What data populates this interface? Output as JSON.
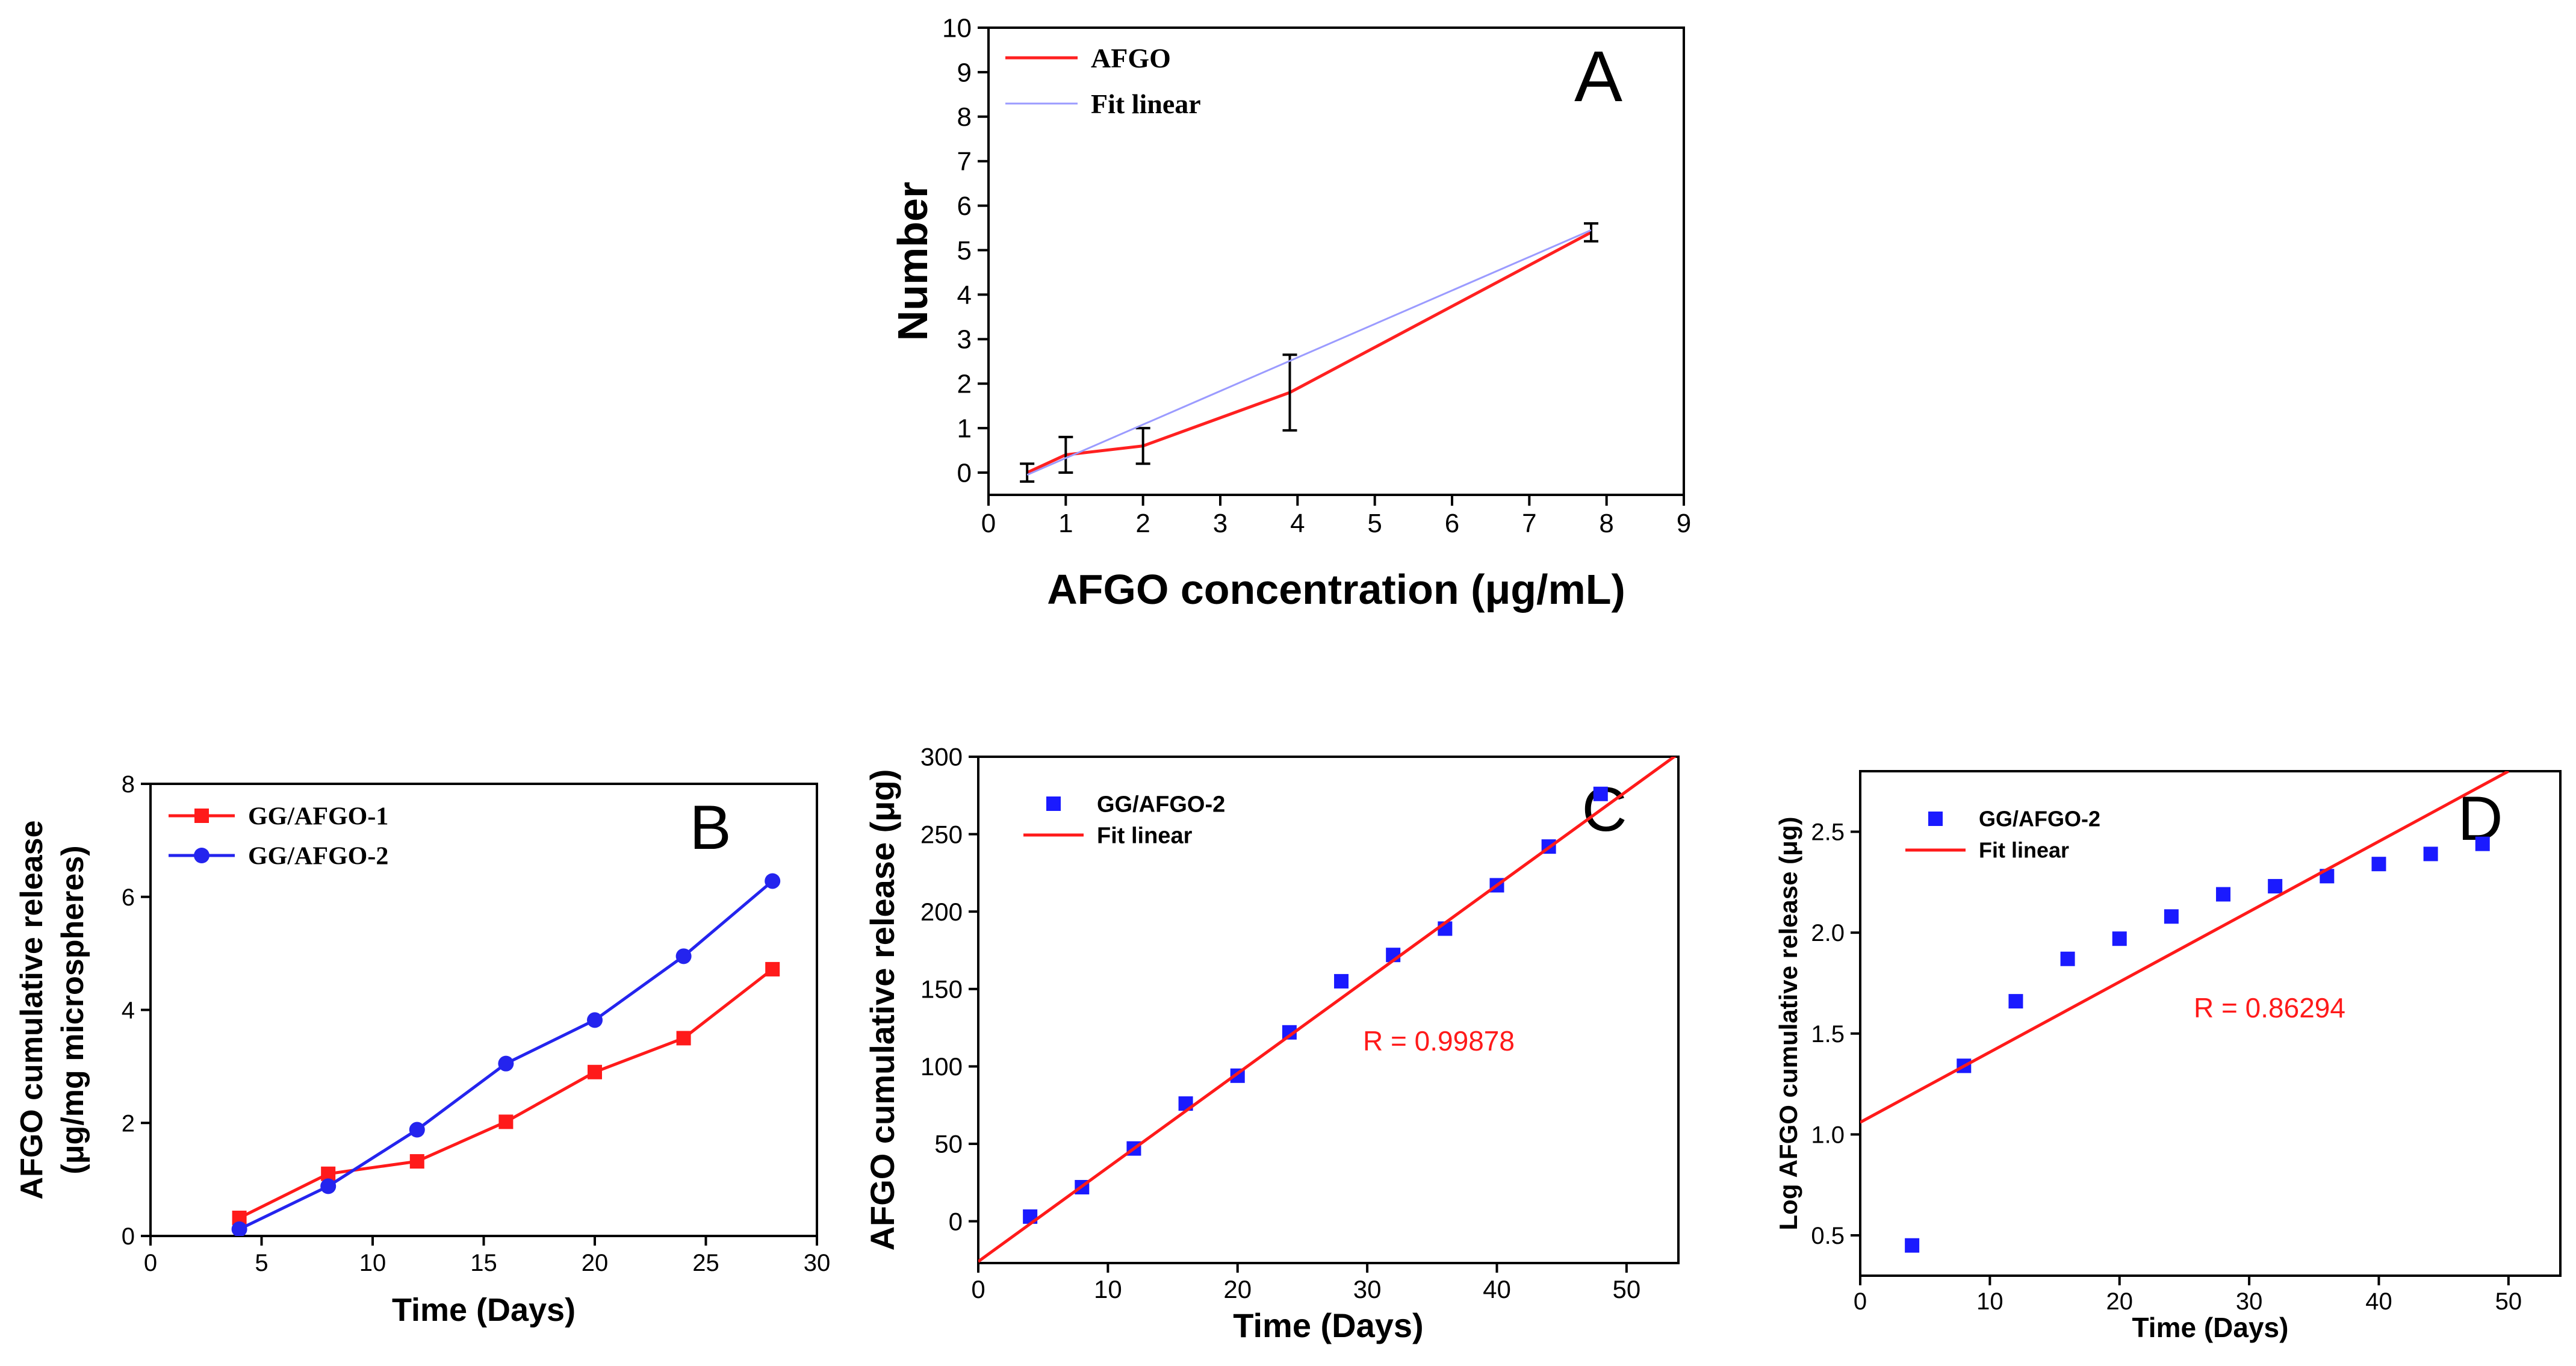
{
  "chart_data": [
    {
      "panel": "A",
      "type": "line",
      "panel_label": "A",
      "xlabel": "AFGO concentration (μg/mL)",
      "ylabel": "Number",
      "xlim": [
        0,
        9
      ],
      "ylim": [
        -0.5,
        10
      ],
      "xticks": [
        0,
        1,
        2,
        3,
        4,
        5,
        6,
        7,
        8,
        9
      ],
      "yticks": [
        0,
        1,
        2,
        3,
        4,
        5,
        6,
        7,
        8,
        9,
        10
      ],
      "legend": "top-left",
      "series": [
        {
          "name": "AFGO",
          "color": "#ff2020",
          "x": [
            0.5,
            1,
            2,
            3.9,
            7.8
          ],
          "y": [
            0.0,
            0.4,
            0.6,
            1.8,
            5.4
          ],
          "errors": [
            0.2,
            0.4,
            0.4,
            0.85,
            0.2
          ]
        },
        {
          "name": "Fit linear",
          "color": "#9b9bff",
          "x": [
            0.5,
            7.8
          ],
          "y": [
            -0.05,
            5.45
          ]
        }
      ]
    },
    {
      "panel": "B",
      "type": "line",
      "panel_label": "B",
      "xlabel": "Time  (Days)",
      "ylabel": [
        "AFGO cumulative  release",
        "(μg/mg microspheres)"
      ],
      "xlim": [
        0,
        30
      ],
      "ylim": [
        0,
        8
      ],
      "xticks": [
        0,
        5,
        10,
        15,
        20,
        25,
        30
      ],
      "yticks": [
        0,
        2,
        4,
        6,
        8
      ],
      "legend": "top-left",
      "series": [
        {
          "name": "GG/AFGO-1",
          "color": "#ff1a1a",
          "marker": "square",
          "x": [
            4,
            8,
            12,
            16,
            20,
            24,
            28
          ],
          "y": [
            0.32,
            1.1,
            1.32,
            2.02,
            2.9,
            3.5,
            4.72
          ]
        },
        {
          "name": "GG/AFGO-2",
          "color": "#2424ee",
          "marker": "circle",
          "x": [
            4,
            8,
            12,
            16,
            20,
            24,
            28
          ],
          "y": [
            0.12,
            0.88,
            1.88,
            3.05,
            3.82,
            4.95,
            6.28
          ]
        }
      ]
    },
    {
      "panel": "C",
      "type": "scatter",
      "panel_label": "C",
      "xlabel": "Time (Days)",
      "ylabel": "AFGO cumulative release (μg)",
      "xlim": [
        0,
        54
      ],
      "ylim": [
        -27,
        300
      ],
      "xticks": [
        0,
        10,
        20,
        30,
        40,
        50
      ],
      "yticks": [
        0,
        50,
        100,
        150,
        200,
        250,
        300
      ],
      "legend": "top-left",
      "annotation": "R = 0.99878",
      "series": [
        {
          "name": "GG/AFGO-2",
          "color": "#1a1aff",
          "marker": "square",
          "x": [
            4,
            8,
            12,
            16,
            20,
            24,
            28,
            32,
            36,
            40,
            44,
            48
          ],
          "y": [
            3,
            22,
            47,
            76,
            94,
            122,
            155,
            172,
            189,
            217,
            242,
            276
          ]
        },
        {
          "name": "Fit linear",
          "color": "#ff1a1a",
          "x": [
            0,
            54
          ],
          "y": [
            -26,
            302
          ]
        }
      ]
    },
    {
      "panel": "D",
      "type": "scatter",
      "panel_label": "D",
      "xlabel": "Time (Days)",
      "ylabel": "Log AFGO cumulative release (μg)",
      "xlim": [
        0,
        54
      ],
      "ylim": [
        0.3,
        2.8
      ],
      "xticks": [
        0,
        10,
        20,
        30,
        40,
        50
      ],
      "yticks": [
        0.5,
        1.0,
        1.5,
        2.0,
        2.5
      ],
      "ytick_labels": [
        "0.5",
        "1.0",
        "1.5",
        "2.0",
        "2.5"
      ],
      "legend": "top-left",
      "annotation": "R = 0.86294",
      "series": [
        {
          "name": "GG/AFGO-2",
          "color": "#1a1aff",
          "marker": "square",
          "x": [
            4,
            8,
            12,
            16,
            20,
            24,
            28,
            32,
            36,
            40,
            44,
            48
          ],
          "y": [
            0.45,
            1.34,
            1.66,
            1.87,
            1.97,
            2.08,
            2.19,
            2.23,
            2.28,
            2.34,
            2.39,
            2.44
          ]
        },
        {
          "name": "Fit linear",
          "color": "#ff1a1a",
          "x": [
            0,
            50
          ],
          "y": [
            1.06,
            2.8
          ]
        }
      ]
    }
  ]
}
